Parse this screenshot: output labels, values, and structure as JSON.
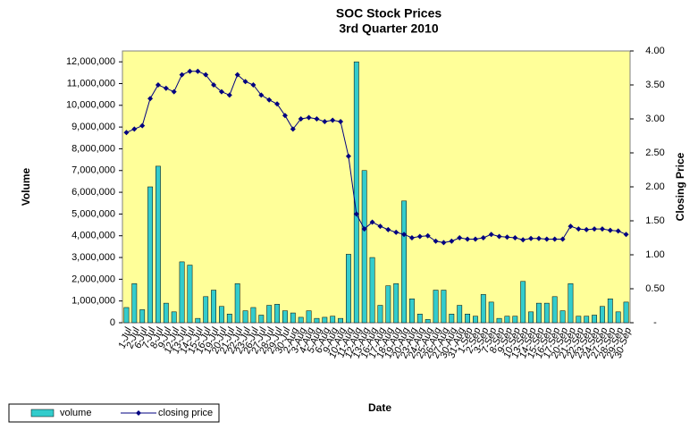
{
  "chart_data": {
    "type": "combo",
    "title": "SOC Stock Prices",
    "subtitle": "3rd Quarter 2010",
    "x_label": "Date",
    "y_label": "Volume",
    "y2_label": "Closing Price",
    "categories": [
      "1-Jul",
      "2-Jul",
      "6-Jul",
      "7-Jul",
      "8-Jul",
      "9-Jul",
      "12-Jul",
      "13-Jul",
      "14-Jul",
      "15-Jul",
      "16-Jul",
      "19-Jul",
      "20-Jul",
      "21-Jul",
      "22-Jul",
      "23-Jul",
      "26-Jul",
      "27-Jul",
      "28-Jul",
      "29-Jul",
      "30-Jul",
      "2-Aug",
      "3-Aug",
      "4-Aug",
      "5-Aug",
      "6-Aug",
      "9-Aug",
      "10-Aug",
      "11-Aug",
      "12-Aug",
      "13-Aug",
      "16-Aug",
      "17-Aug",
      "18-Aug",
      "19-Aug",
      "20-Aug",
      "23-Aug",
      "24-Aug",
      "25-Aug",
      "26-Aug",
      "27-Aug",
      "30-Aug",
      "31-Aug",
      "1-Sep",
      "2-Sep",
      "3-Sep",
      "7-Sep",
      "8-Sep",
      "9-Sep",
      "10-Sep",
      "13-Sep",
      "14-Sep",
      "15-Sep",
      "16-Sep",
      "17-Sep",
      "20-Sep",
      "21-Sep",
      "22-Sep",
      "23-Sep",
      "24-Sep",
      "27-Sep",
      "28-Sep",
      "29-Sep",
      "30-Sep"
    ],
    "series": [
      {
        "name": "volume",
        "type": "bar",
        "color": "#33cccc",
        "values": [
          700000,
          1800000,
          600000,
          6250000,
          7200000,
          900000,
          500000,
          2800000,
          2650000,
          200000,
          1200000,
          1500000,
          750000,
          400000,
          1800000,
          550000,
          700000,
          350000,
          800000,
          850000,
          550000,
          450000,
          250000,
          550000,
          200000,
          250000,
          300000,
          200000,
          3150000,
          12000000,
          7000000,
          3000000,
          800000,
          1700000,
          1800000,
          5600000,
          1100000,
          400000,
          150000,
          1500000,
          1500000,
          400000,
          800000,
          400000,
          300000,
          1300000,
          950000,
          200000,
          300000,
          300000,
          1900000,
          500000,
          900000,
          900000,
          1200000,
          550000,
          1800000,
          300000,
          300000,
          350000,
          750000,
          1100000,
          500000,
          950000
        ]
      },
      {
        "name": "closing price",
        "type": "line",
        "axis": "y2",
        "color": "#000080",
        "values": [
          2.8,
          2.85,
          2.9,
          3.3,
          3.5,
          3.45,
          3.4,
          3.65,
          3.7,
          3.7,
          3.65,
          3.5,
          3.4,
          3.35,
          3.65,
          3.55,
          3.5,
          3.35,
          3.28,
          3.22,
          3.05,
          2.85,
          3.0,
          3.02,
          3.0,
          2.96,
          2.98,
          2.96,
          2.45,
          1.6,
          1.38,
          1.48,
          1.42,
          1.37,
          1.33,
          1.3,
          1.25,
          1.27,
          1.28,
          1.2,
          1.18,
          1.2,
          1.25,
          1.23,
          1.23,
          1.25,
          1.3,
          1.27,
          1.26,
          1.25,
          1.22,
          1.24,
          1.24,
          1.23,
          1.23,
          1.23,
          1.42,
          1.38,
          1.37,
          1.38,
          1.38,
          1.36,
          1.35,
          1.3
        ]
      }
    ],
    "ylim": [
      0,
      12500000
    ],
    "yticks": [
      0,
      {
        "value": 1000000,
        "label": "1,000,000"
      },
      {
        "value": 2000000,
        "label": "2,000,000"
      },
      {
        "value": 3000000,
        "label": "3,000,000"
      },
      {
        "value": 4000000,
        "label": "4,000,000"
      },
      {
        "value": 5000000,
        "label": "5,000,000"
      },
      {
        "value": 6000000,
        "label": "6,000,000"
      },
      {
        "value": 7000000,
        "label": "7,000,000"
      },
      {
        "value": 8000000,
        "label": "8,000,000"
      },
      {
        "value": 9000000,
        "label": "9,000,000"
      },
      {
        "value": 10000000,
        "label": "10,000,000"
      },
      {
        "value": 11000000,
        "label": "11,000,000"
      },
      {
        "value": 12000000,
        "label": "12,000,000"
      }
    ],
    "y2lim": [
      0,
      4
    ],
    "y2ticks": [
      {
        "value": 0,
        "label": "-"
      },
      {
        "value": 0.5,
        "label": "0.50"
      },
      {
        "value": 1,
        "label": "1.00"
      },
      {
        "value": 1.5,
        "label": "1.50"
      },
      {
        "value": 2,
        "label": "2.00"
      },
      {
        "value": 2.5,
        "label": "2.50"
      },
      {
        "value": 3,
        "label": "3.00"
      },
      {
        "value": 3.5,
        "label": "3.50"
      },
      {
        "value": 4,
        "label": "4.00"
      }
    ],
    "plot_background": "#ffff99",
    "legend": "bottom-left"
  }
}
